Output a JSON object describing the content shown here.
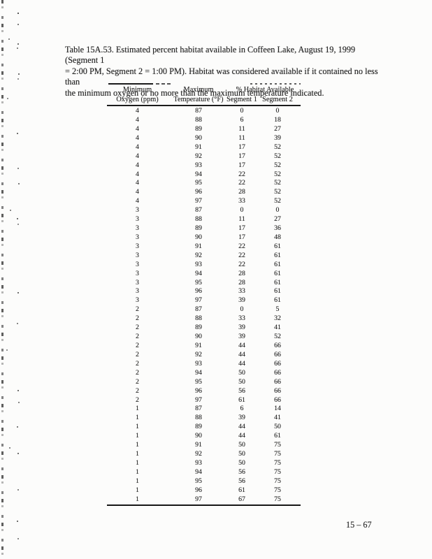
{
  "page": {
    "caption_lines": [
      "Table 15A.53. Estimated percent habitat available in Coffeen Lake, August 19, 1999 (Segment 1",
      "= 2:00 PM, Segment 2 = 1:00 PM). Habitat was considered available if it contained no less than",
      "the minimum oxygen or no more than the maximum temperature indicated."
    ],
    "page_number": "15 – 67"
  },
  "table": {
    "header": {
      "col1_line1": "Minimum",
      "col1_line2": "Oxygen (ppm)",
      "col2_line1": "Maximum",
      "col2_line2": "Temperature (°F)",
      "span_label": "% Habitat Available",
      "seg1_label": "Segment 1",
      "seg2_label": "Segment 2"
    },
    "columns": [
      "Minimum Oxygen (ppm)",
      "Maximum Temperature (°F)",
      "% Habitat Available Segment 1",
      "% Habitat Available Segment 2"
    ],
    "rows": [
      [
        4,
        87,
        0,
        0
      ],
      [
        4,
        88,
        6,
        18
      ],
      [
        4,
        89,
        11,
        27
      ],
      [
        4,
        90,
        11,
        39
      ],
      [
        4,
        91,
        17,
        52
      ],
      [
        4,
        92,
        17,
        52
      ],
      [
        4,
        93,
        17,
        52
      ],
      [
        4,
        94,
        22,
        52
      ],
      [
        4,
        95,
        22,
        52
      ],
      [
        4,
        96,
        28,
        52
      ],
      [
        4,
        97,
        33,
        52
      ],
      [
        3,
        87,
        0,
        0
      ],
      [
        3,
        88,
        11,
        27
      ],
      [
        3,
        89,
        17,
        36
      ],
      [
        3,
        90,
        17,
        48
      ],
      [
        3,
        91,
        22,
        61
      ],
      [
        3,
        92,
        22,
        61
      ],
      [
        3,
        93,
        22,
        61
      ],
      [
        3,
        94,
        28,
        61
      ],
      [
        3,
        95,
        28,
        61
      ],
      [
        3,
        96,
        33,
        61
      ],
      [
        3,
        97,
        39,
        61
      ],
      [
        2,
        87,
        0,
        5
      ],
      [
        2,
        88,
        33,
        32
      ],
      [
        2,
        89,
        39,
        41
      ],
      [
        2,
        90,
        39,
        52
      ],
      [
        2,
        91,
        44,
        66
      ],
      [
        2,
        92,
        44,
        66
      ],
      [
        2,
        93,
        44,
        66
      ],
      [
        2,
        94,
        50,
        66
      ],
      [
        2,
        95,
        50,
        66
      ],
      [
        2,
        96,
        56,
        66
      ],
      [
        2,
        97,
        61,
        66
      ],
      [
        1,
        87,
        6,
        14
      ],
      [
        1,
        88,
        39,
        41
      ],
      [
        1,
        89,
        44,
        50
      ],
      [
        1,
        90,
        44,
        61
      ],
      [
        1,
        91,
        50,
        75
      ],
      [
        1,
        92,
        50,
        75
      ],
      [
        1,
        93,
        50,
        75
      ],
      [
        1,
        94,
        56,
        75
      ],
      [
        1,
        95,
        56,
        75
      ],
      [
        1,
        96,
        61,
        75
      ],
      [
        1,
        97,
        67,
        75
      ]
    ]
  }
}
